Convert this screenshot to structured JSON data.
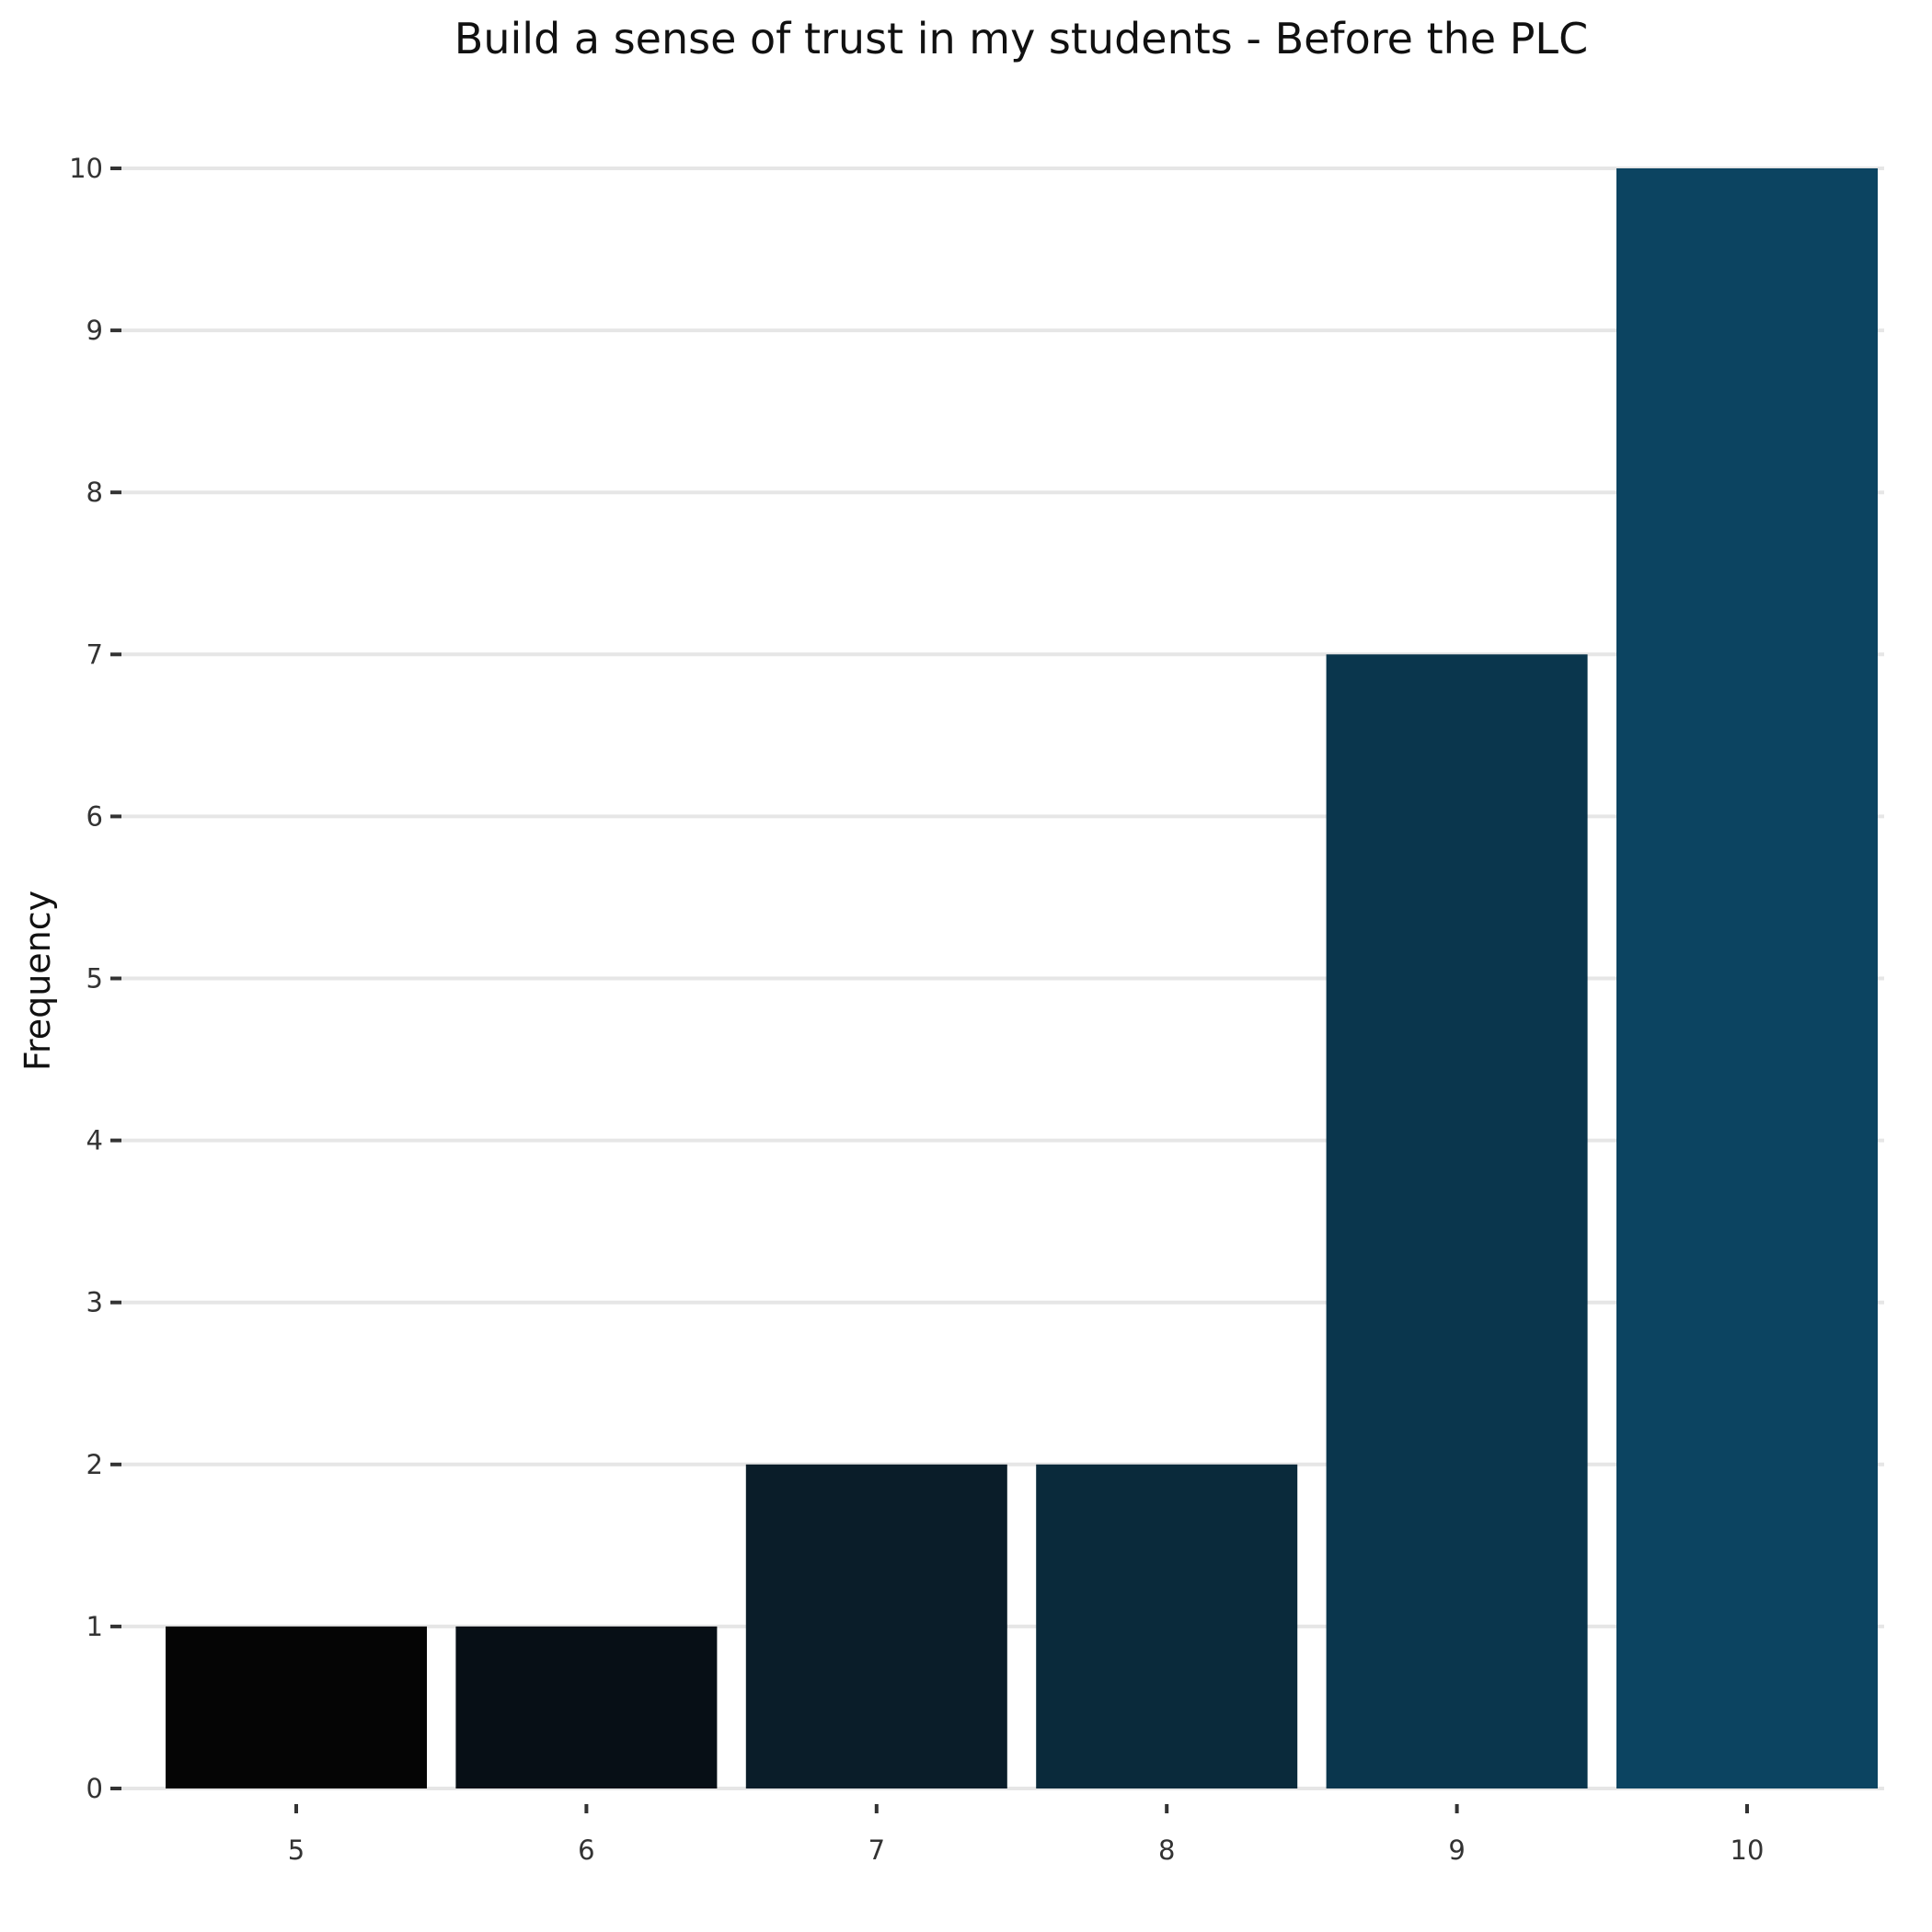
{
  "chart_data": {
    "type": "bar",
    "title": "Build a sense of trust in my students - Before the PLC",
    "xlabel": "",
    "ylabel": "Frequency",
    "categories": [
      "5",
      "6",
      "7",
      "8",
      "9",
      "10"
    ],
    "values": [
      1,
      1,
      2,
      2,
      7,
      10
    ],
    "colors": [
      "#050505",
      "#070f16",
      "#0a1d29",
      "#0a2a3b",
      "#0a364d",
      "#0c4461"
    ],
    "ylim": [
      0,
      10
    ],
    "yticks": [
      "0",
      "1",
      "2",
      "3",
      "4",
      "5",
      "6",
      "7",
      "8",
      "9",
      "10"
    ],
    "grid": true,
    "legend": "none"
  }
}
